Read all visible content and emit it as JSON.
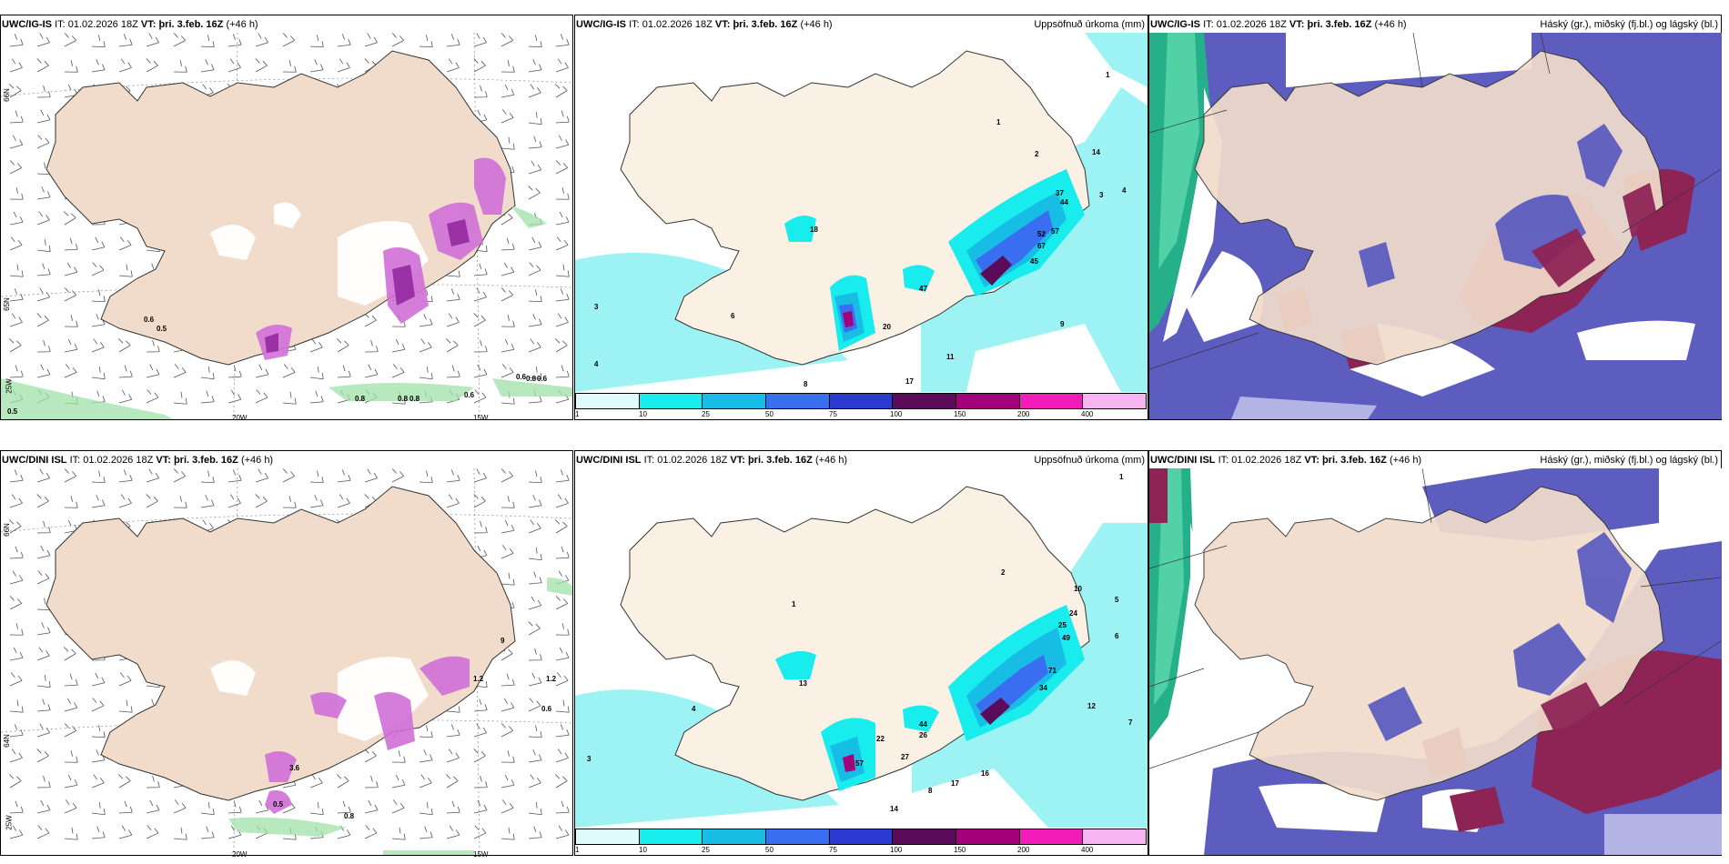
{
  "rows": [
    {
      "model": "UWC/IG-IS",
      "it_label": "IT:",
      "it_value": "01.02.2026 18Z",
      "vt_label": "VT:",
      "vt_value": "þri. 3.feb. 16Z",
      "lead": "(+46 h)",
      "precip_title": "Uppsöfnuð úrkoma (mm)",
      "cloud_title": "Háský (gr.), miðský (fj.bl.) og lágský (bl.)",
      "wind_values": [
        "0.6",
        "0.5",
        "0.8",
        "0.8",
        "0.8",
        "0.6",
        "0.6",
        "0.8",
        "0.6",
        "0.5"
      ],
      "precip_values": [
        "1",
        "2",
        "3",
        "4",
        "6",
        "8",
        "9",
        "11",
        "14",
        "17",
        "18",
        "20",
        "37",
        "44",
        "45",
        "47",
        "52",
        "57",
        "67"
      ],
      "grid_labels": [
        "66N",
        "65N",
        "64N",
        "25W",
        "20W",
        "15W"
      ]
    },
    {
      "model": "UWC/DINI ISL",
      "it_label": "IT:",
      "it_value": "01.02.2026 18Z",
      "vt_label": "VT:",
      "vt_value": "þri. 3.feb. 16Z",
      "lead": "(+46 h)",
      "precip_title": "Uppsöfnuð úrkoma (mm)",
      "cloud_title": "Háský (gr.), miðský (fj.bl.) og lágský (bl.)",
      "wind_values": [
        "1.2",
        "0.6",
        "3.6",
        "0.5",
        "0.8",
        "1.2",
        "9"
      ],
      "precip_values": [
        "1",
        "2",
        "3",
        "4",
        "5",
        "6",
        "7",
        "8",
        "10",
        "12",
        "13",
        "14",
        "16",
        "17",
        "22",
        "24",
        "25",
        "26",
        "27",
        "34",
        "44",
        "49",
        "57",
        "71"
      ],
      "grid_labels": [
        "66N",
        "65N",
        "64N",
        "25W",
        "20W",
        "15W"
      ]
    }
  ],
  "colorbar": {
    "labels": [
      "1",
      "10",
      "25",
      "50",
      "75",
      "100",
      "150",
      "200",
      "400"
    ],
    "colors": [
      "#dffbfb",
      "#18ecec",
      "#18bde6",
      "#3a6ef0",
      "#2b3ad0",
      "#5a0c5a",
      "#a4007a",
      "#f41cb8",
      "#f6b4f0"
    ]
  }
}
